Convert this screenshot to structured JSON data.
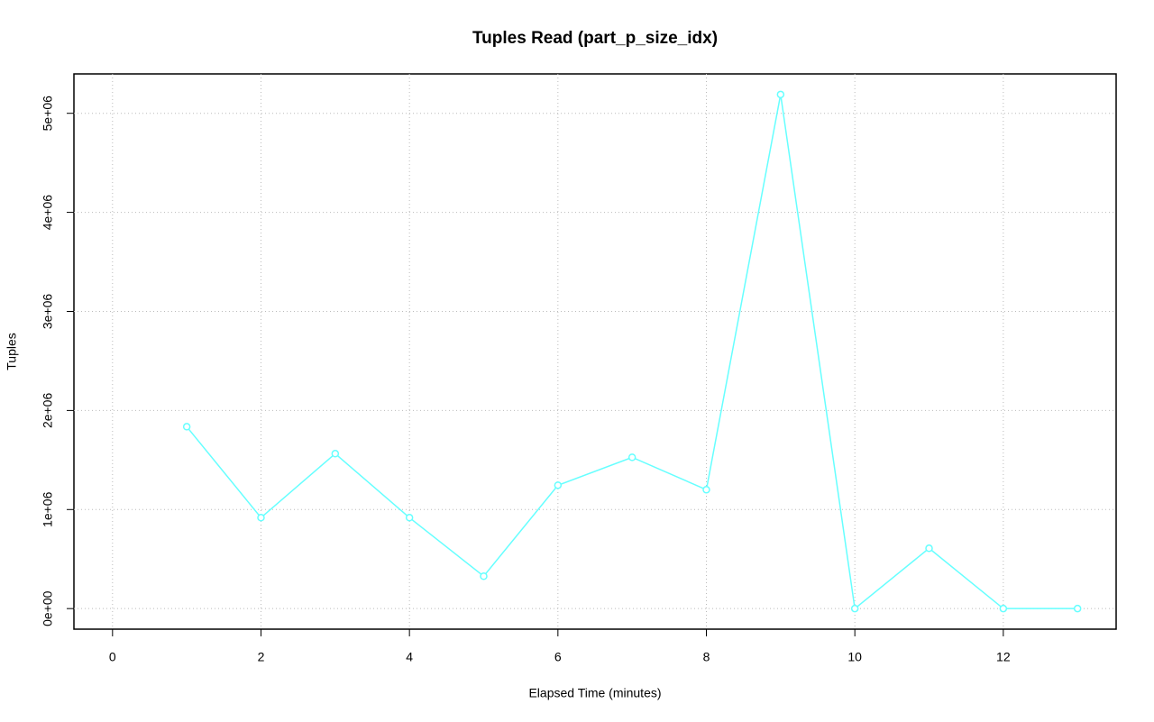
{
  "chart_data": {
    "type": "line",
    "title": "Tuples Read (part_p_size_idx)",
    "x_label": "Elapsed Time (minutes)",
    "y_label": "Tuples",
    "x": [
      1,
      2,
      3,
      4,
      5,
      6,
      7,
      8,
      9,
      10,
      11,
      12,
      13
    ],
    "series": [
      {
        "name": "part_p_size_idx",
        "color": "#66ffff",
        "values": [
          1836000,
          918000,
          1564000,
          918000,
          327000,
          1245000,
          1527000,
          1200000,
          5190000,
          0,
          609000,
          0,
          0
        ]
      }
    ],
    "xlim": [
      -0.52,
      13.52
    ],
    "xticks": [
      0,
      2,
      4,
      6,
      8,
      10,
      12
    ],
    "ylim": [
      -207600,
      5397600
    ],
    "yticks": [
      {
        "value": 0,
        "label": "0e+00"
      },
      {
        "value": 1000000,
        "label": "1e+06"
      },
      {
        "value": 2000000,
        "label": "2e+06"
      },
      {
        "value": 3000000,
        "label": "3e+06"
      },
      {
        "value": 4000000,
        "label": "4e+06"
      },
      {
        "value": 5000000,
        "label": "5e+06"
      }
    ],
    "grid": true
  }
}
